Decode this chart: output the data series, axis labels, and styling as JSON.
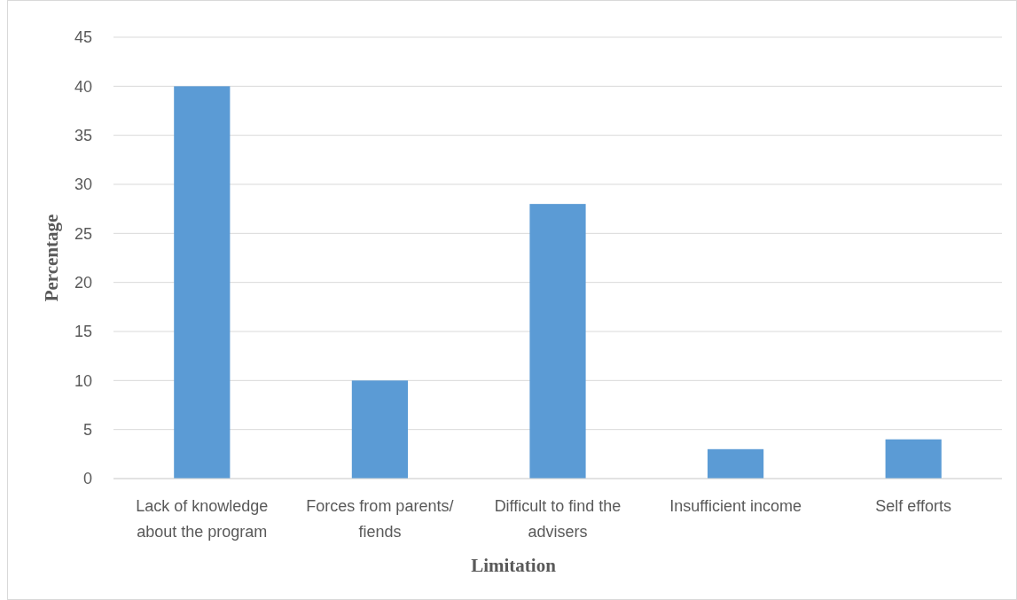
{
  "chart_data": {
    "type": "bar",
    "xlabel": "Limitation",
    "ylabel": "Percentage",
    "categories": [
      "Lack of knowledge about the program",
      "Forces from parents/ fiends",
      "Difficult to find the advisers",
      "Insufficient income",
      "Self efforts"
    ],
    "values": [
      40,
      10,
      28,
      3,
      4
    ],
    "color": "#5b9bd5",
    "ylim": [
      0,
      45
    ],
    "yticks": [
      0,
      5,
      10,
      15,
      20,
      25,
      30,
      35,
      40,
      45
    ],
    "grid": "y"
  }
}
